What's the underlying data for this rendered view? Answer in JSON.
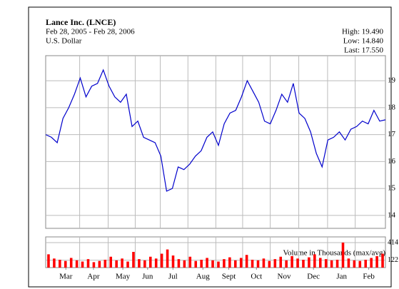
{
  "chart_data": {
    "type": "line",
    "title": "Lance Inc. (LNCE)",
    "subtitle": "Feb 28, 2005 - Feb 28, 2006",
    "currency": "U.S. Dollar",
    "stats": [
      "High: 19.490",
      "Low: 14.840",
      "Last: 17.550"
    ],
    "color": "#0000cc",
    "values": [
      17.0,
      16.9,
      16.7,
      17.6,
      18.0,
      18.5,
      19.1,
      18.4,
      18.8,
      18.9,
      19.4,
      18.8,
      18.4,
      18.2,
      18.5,
      17.3,
      17.5,
      16.9,
      16.8,
      16.7,
      16.2,
      14.9,
      15.0,
      15.8,
      15.7,
      15.9,
      16.2,
      16.4,
      16.9,
      17.1,
      16.6,
      17.4,
      17.8,
      17.9,
      18.4,
      19.0,
      18.6,
      18.2,
      17.5,
      17.4,
      17.9,
      18.5,
      18.2,
      18.9,
      17.8,
      17.6,
      17.1,
      16.3,
      15.8,
      16.8,
      16.9,
      17.1,
      16.8,
      17.2,
      17.3,
      17.5,
      17.4,
      17.9,
      17.5,
      17.55
    ],
    "xlim": [
      0,
      59
    ],
    "xticks": [
      {
        "value": 3.5,
        "label": "Mar"
      },
      {
        "value": 8.3,
        "label": "Apr"
      },
      {
        "value": 13.4,
        "label": "May"
      },
      {
        "value": 17.7,
        "label": "Jun"
      },
      {
        "value": 22.1,
        "label": "Jul"
      },
      {
        "value": 27.3,
        "label": "Aug"
      },
      {
        "value": 31.8,
        "label": "Sept"
      },
      {
        "value": 36.6,
        "label": "Oct"
      },
      {
        "value": 41.4,
        "label": "Nov"
      },
      {
        "value": 46.5,
        "label": "Dec"
      },
      {
        "value": 51.4,
        "label": "Jan"
      },
      {
        "value": 56.1,
        "label": "Feb"
      }
    ],
    "ylim": [
      13.52,
      19.93
    ],
    "yticks": [
      14,
      15,
      16,
      17,
      18,
      19
    ],
    "grid": true,
    "volume": {
      "type": "bar",
      "label": "Volume in Thousands (max/avg)",
      "color": "#ff0000",
      "values": [
        220,
        150,
        130,
        110,
        160,
        120,
        100,
        140,
        90,
        110,
        130,
        180,
        120,
        150,
        100,
        260,
        140,
        120,
        180,
        150,
        230,
        300,
        200,
        140,
        120,
        180,
        110,
        130,
        160,
        120,
        100,
        140,
        170,
        120,
        160,
        210,
        130,
        120,
        150,
        110,
        140,
        180,
        120,
        190,
        150,
        130,
        170,
        220,
        160,
        140,
        120,
        130,
        414,
        150,
        120,
        110,
        130,
        160,
        190,
        230
      ],
      "ylim": [
        0,
        508
      ],
      "yticks": [
        122,
        414
      ]
    }
  }
}
